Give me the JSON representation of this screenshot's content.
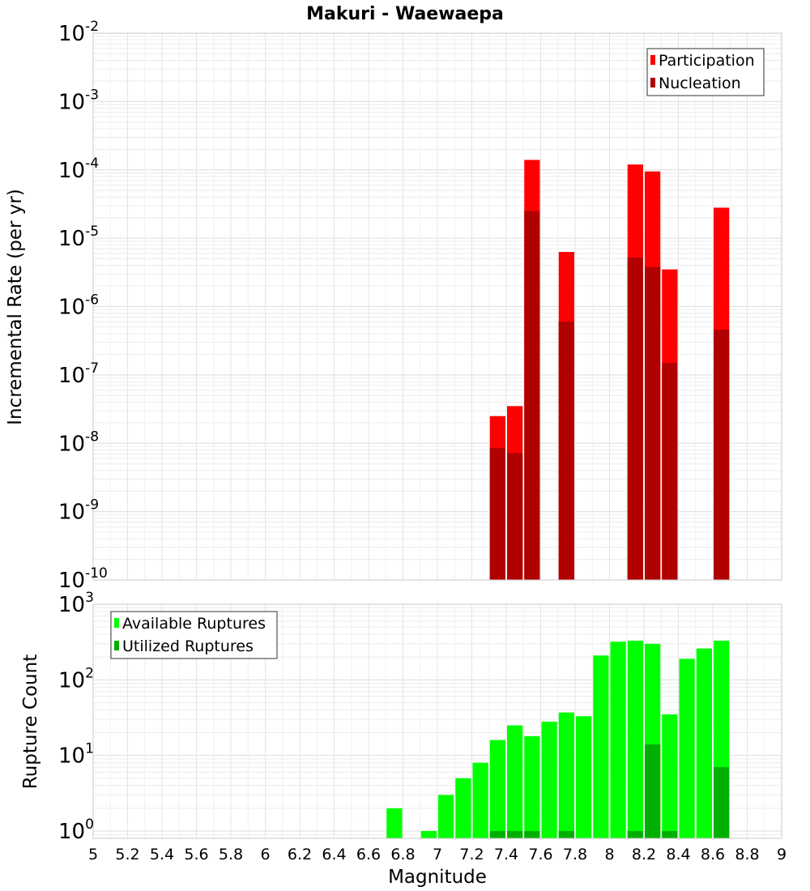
{
  "chart_data": {
    "title": "Makuri - Waewaepa",
    "xlabel": "Magnitude",
    "xlim": [
      5,
      9
    ],
    "x_ticks": [
      "5",
      "5.2",
      "5.4",
      "5.6",
      "5.8",
      "6",
      "6.2",
      "6.4",
      "6.6",
      "6.8",
      "7",
      "7.2",
      "7.4",
      "7.6",
      "7.8",
      "8",
      "8.2",
      "8.4",
      "8.6",
      "8.8",
      "9"
    ],
    "bin_width": 0.1,
    "panels": [
      {
        "type": "bar",
        "scale": "log",
        "ylabel": "Incremental Rate (per yr)",
        "ylim": [
          1e-10,
          0.01
        ],
        "y_ticks": [
          {
            "base": "10",
            "exp": "-10",
            "value": 1e-10
          },
          {
            "base": "10",
            "exp": "-9",
            "value": 1e-09
          },
          {
            "base": "10",
            "exp": "-8",
            "value": 1e-08
          },
          {
            "base": "10",
            "exp": "-7",
            "value": 1e-07
          },
          {
            "base": "10",
            "exp": "-6",
            "value": 1e-06
          },
          {
            "base": "10",
            "exp": "-5",
            "value": 1e-05
          },
          {
            "base": "10",
            "exp": "-4",
            "value": 0.0001
          },
          {
            "base": "10",
            "exp": "-3",
            "value": 0.001
          },
          {
            "base": "10",
            "exp": "-2",
            "value": 0.01
          }
        ],
        "legend_position": "top-right",
        "series": [
          {
            "name": "Participation",
            "color": "#ff0000",
            "x": [
              7.35,
              7.45,
              7.55,
              7.75,
              8.15,
              8.25,
              8.35,
              8.65
            ],
            "values": [
              2.5e-08,
              3.5e-08,
              0.00014,
              6.3e-06,
              0.00012,
              9.5e-05,
              3.5e-06,
              2.8e-05
            ]
          },
          {
            "name": "Nucleation",
            "color": "#b00000",
            "x": [
              7.35,
              7.45,
              7.55,
              7.75,
              8.15,
              8.25,
              8.35,
              8.65
            ],
            "values": [
              8.5e-09,
              7.2e-09,
              2.5e-05,
              6e-07,
              5.2e-06,
              3.8e-06,
              1.5e-07,
              4.6e-07
            ]
          }
        ]
      },
      {
        "type": "bar",
        "scale": "log",
        "ylabel": "Rupture Count",
        "ylim": [
          0.8,
          1000
        ],
        "y_ticks": [
          {
            "base": "10",
            "exp": "0",
            "value": 1
          },
          {
            "base": "10",
            "exp": "1",
            "value": 10
          },
          {
            "base": "10",
            "exp": "2",
            "value": 100
          },
          {
            "base": "10",
            "exp": "3",
            "value": 1000
          }
        ],
        "legend_position": "top-left",
        "series": [
          {
            "name": "Available Ruptures",
            "color": "#00ff00",
            "x": [
              6.75,
              6.95,
              7.05,
              7.15,
              7.25,
              7.35,
              7.45,
              7.55,
              7.65,
              7.75,
              7.85,
              7.95,
              8.05,
              8.15,
              8.25,
              8.35,
              8.45,
              8.55,
              8.65
            ],
            "values": [
              2,
              1,
              3,
              5,
              8,
              16,
              25,
              18,
              28,
              37,
              33,
              210,
              320,
              330,
              300,
              35,
              190,
              260,
              330
            ]
          },
          {
            "name": "Utilized Ruptures",
            "color": "#00b000",
            "x": [
              7.35,
              7.45,
              7.55,
              7.75,
              8.15,
              8.25,
              8.35,
              8.65
            ],
            "values": [
              1,
              1,
              1,
              1,
              1,
              14,
              1,
              7
            ]
          }
        ]
      }
    ]
  }
}
